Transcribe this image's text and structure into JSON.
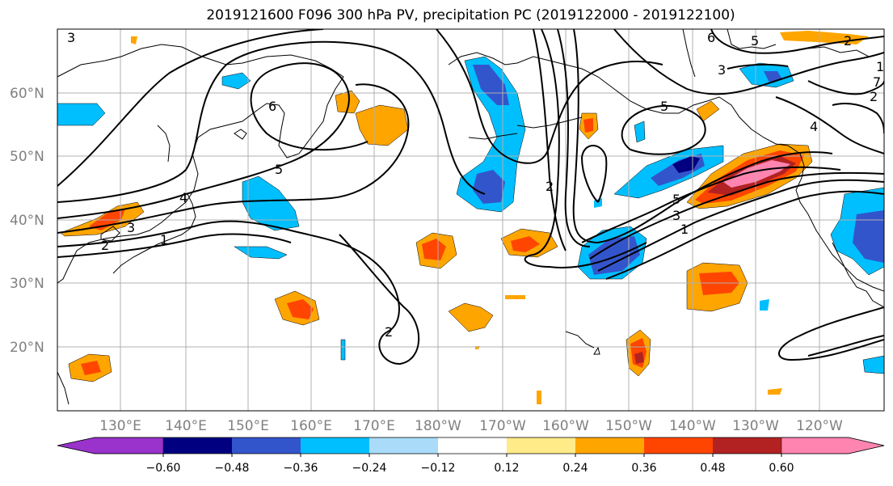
{
  "title": "2019121600 F096 300 hPa PV, precipitation PC (2019122000 - 2019122100)",
  "lat_labels": [
    "60°N",
    "50°N",
    "40°N",
    "30°N",
    "20°N"
  ],
  "lon_labels": [
    "130°E",
    "140°E",
    "150°E",
    "160°E",
    "170°E",
    "180°W",
    "170°W",
    "160°W",
    "150°W",
    "140°W",
    "130°W",
    "120°W"
  ],
  "colorbar": {
    "colors": [
      "#9933cc",
      "#000080",
      "#3355cc",
      "#00bfff",
      "#aadcfa",
      "#ffffff",
      "#ffeb88",
      "#ffa500",
      "#ff4500",
      "#b22222",
      "#ff85b0"
    ],
    "ticks": [
      "−0.60",
      "−0.48",
      "−0.36",
      "−0.24",
      "−0.12",
      "0.12",
      "0.24",
      "0.36",
      "0.48",
      "0.60"
    ]
  },
  "contour_labels": [
    "6",
    "5",
    "4",
    "3",
    "2",
    "1",
    "2",
    "3",
    "5",
    "6",
    "5",
    "3",
    "2",
    "1",
    "3",
    "5",
    "2",
    "2",
    "1",
    "7",
    "4",
    "4",
    "6"
  ],
  "colors": {
    "grid": "#b0b0b0",
    "tick_text": "#808080",
    "coast": "#000000",
    "contour": "#000000"
  }
}
